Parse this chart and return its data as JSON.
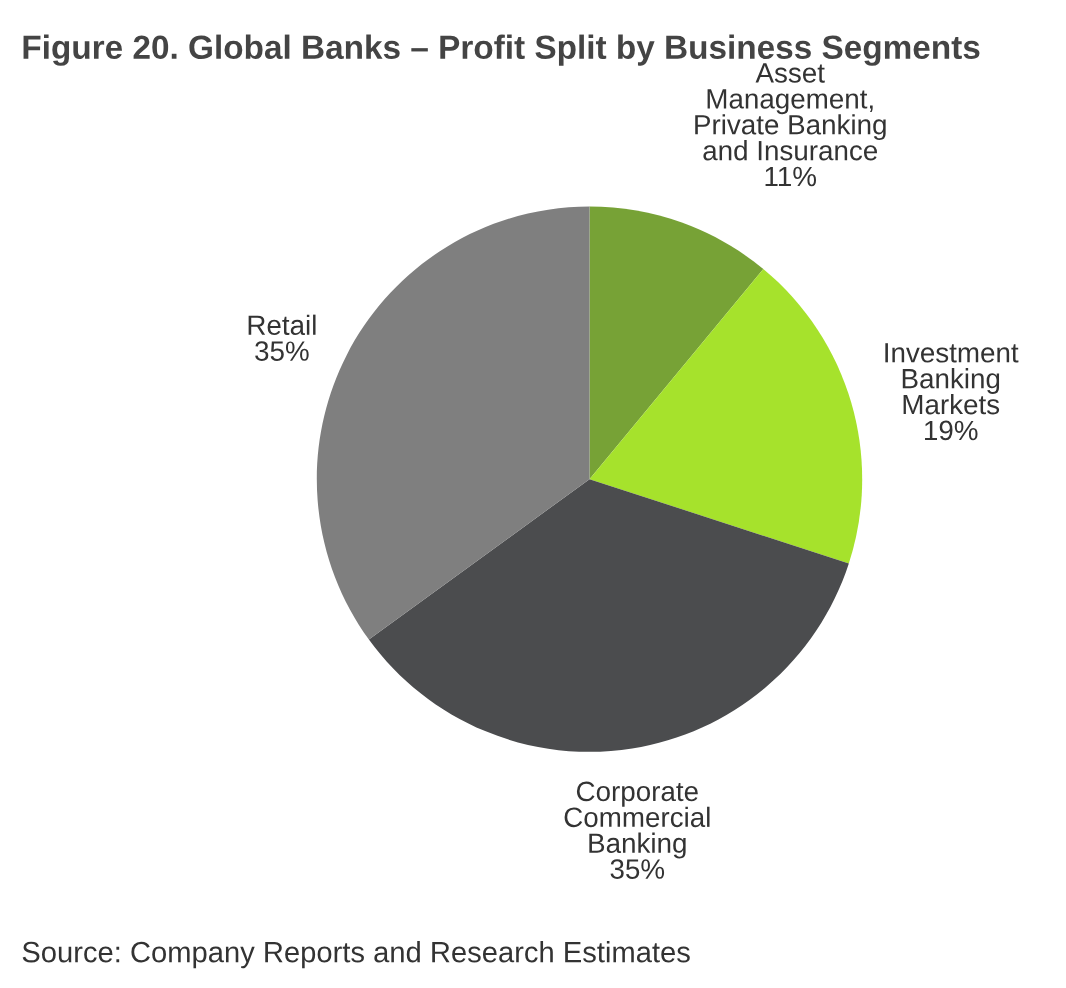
{
  "chart_data": {
    "type": "pie",
    "title": "Figure 20. Global Banks – Profit Split by Business Segments",
    "categories": [
      "Asset\nManagement,\nPrivate Banking\nand Insurance",
      "Investment\nBanking\nMarkets",
      "Corporate\nCommercial\nBanking",
      "Retail"
    ],
    "values": [
      11,
      19,
      35,
      35
    ],
    "value_labels": [
      "11%",
      "19%",
      "35%",
      "35%"
    ],
    "colors": [
      "#77a236",
      "#a6e22c",
      "#4b4c4e",
      "#7f7f7f"
    ],
    "annotations": [
      "Source: Company Reports and Research Estimates"
    ]
  }
}
